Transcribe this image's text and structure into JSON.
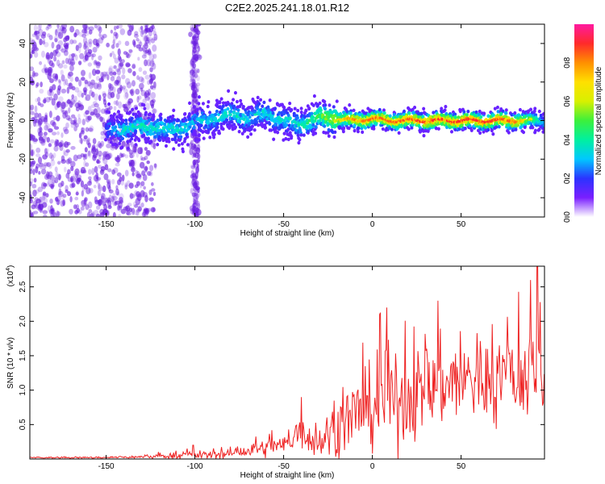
{
  "title": "C2E2.2025.241.18.01.R12",
  "colors": {
    "background": "#ffffff",
    "axis": "#000000",
    "snr_line": "#ee2222",
    "spectro_dots": "#6a1ee0",
    "colormap": [
      "#ffffff",
      "#7a1fff",
      "#2b33ff",
      "#00c8ff",
      "#00f0a0",
      "#3cf03c",
      "#d8f000",
      "#ffe000",
      "#ff9000",
      "#ff2a2a",
      "#ff1aa0"
    ]
  },
  "chart_data": [
    {
      "type": "heatmap",
      "title": "C2E2.2025.241.18.01.R12",
      "xlabel": "Height of straight line (km)",
      "ylabel": "Frequency (Hz)",
      "xlim": [
        -193,
        97
      ],
      "ylim": [
        -50,
        50
      ],
      "xticks": [
        -150,
        -100,
        -50,
        0,
        50
      ],
      "xtick_labels": [
        "-150",
        "-100",
        "-50",
        "0",
        "50"
      ],
      "yticks": [
        -40,
        -20,
        0,
        20,
        40
      ],
      "ytick_labels": [
        "-40",
        "-20",
        "0",
        "20",
        "40"
      ],
      "ridge": {
        "x": [
          -150,
          -140,
          -130,
          -120,
          -110,
          -100,
          -90,
          -80,
          -70,
          -60,
          -50,
          -40,
          -30,
          -20,
          -10,
          0,
          10,
          20,
          30,
          40,
          50,
          60,
          70,
          80,
          90,
          97
        ],
        "center_freq": [
          -5,
          -4,
          -3,
          -4,
          -5,
          -1,
          1,
          3,
          1,
          4,
          0,
          -2,
          2,
          1,
          0,
          1,
          0,
          0,
          0,
          0,
          0,
          0,
          0,
          0,
          0,
          0
        ],
        "peak_amplitude": [
          0.3,
          0.42,
          0.45,
          0.45,
          0.42,
          0.38,
          0.4,
          0.42,
          0.4,
          0.42,
          0.42,
          0.45,
          0.55,
          0.7,
          0.82,
          0.85,
          0.85,
          0.88,
          0.9,
          0.9,
          0.9,
          0.9,
          0.88,
          0.85,
          0.6,
          0.4
        ]
      },
      "noise_band_x": [
        -193,
        -130
      ],
      "noise_stripe_x": -100,
      "colorbar": {
        "label": "Normalized spectral amplitude",
        "range": [
          0,
          1
        ],
        "ticks": [
          0.0,
          0.2,
          0.4,
          0.6,
          0.8
        ],
        "tick_labels": [
          "0.0",
          "0.2",
          "0.4",
          "0.6",
          "0.8"
        ]
      }
    },
    {
      "type": "line",
      "xlabel": "Height of straight line (km)",
      "ylabel": "SNR (10 * v/v)",
      "scale_label": "(x10",
      "scale_exponent": "4",
      "scale_close": ")",
      "xlim": [
        -193,
        97
      ],
      "ylim": [
        0,
        2.8
      ],
      "xticks": [
        -150,
        -100,
        -50,
        0,
        50
      ],
      "xtick_labels": [
        "-150",
        "-100",
        "-50",
        "0",
        "50"
      ],
      "yticks": [
        0.5,
        1.0,
        1.5,
        2.0,
        2.5
      ],
      "ytick_labels": [
        "0.5",
        "1.0",
        "1.5",
        "2.0",
        "2.5"
      ],
      "envelope": {
        "x": [
          -193,
          -160,
          -130,
          -120,
          -100,
          -90,
          -80,
          -70,
          -60,
          -50,
          -45,
          -40,
          -35,
          -30,
          -20,
          -10,
          0,
          10,
          20,
          30,
          40,
          50,
          60,
          70,
          80,
          90,
          97
        ],
        "mean": [
          0.02,
          0.02,
          0.03,
          0.04,
          0.06,
          0.06,
          0.08,
          0.12,
          0.16,
          0.2,
          0.28,
          0.45,
          0.3,
          0.25,
          0.45,
          0.65,
          0.75,
          0.82,
          0.9,
          1.0,
          1.1,
          1.15,
          1.15,
          1.15,
          1.2,
          1.2,
          1.1
        ],
        "spread": [
          0.01,
          0.01,
          0.02,
          0.03,
          0.06,
          0.05,
          0.08,
          0.1,
          0.12,
          0.15,
          0.2,
          0.3,
          0.25,
          0.25,
          0.4,
          0.5,
          0.55,
          0.6,
          0.6,
          0.6,
          0.6,
          0.6,
          0.6,
          0.6,
          0.6,
          0.7,
          0.8
        ]
      },
      "peaks": [
        {
          "x": 93,
          "y": 2.8
        },
        {
          "x": 89,
          "y": 2.6
        },
        {
          "x": 4,
          "y": 2.1
        },
        {
          "x": 8,
          "y": 2.2
        },
        {
          "x": 37,
          "y": 2.3
        },
        {
          "x": -40,
          "y": 0.9
        },
        {
          "x": -101,
          "y": 0.2
        }
      ]
    }
  ]
}
